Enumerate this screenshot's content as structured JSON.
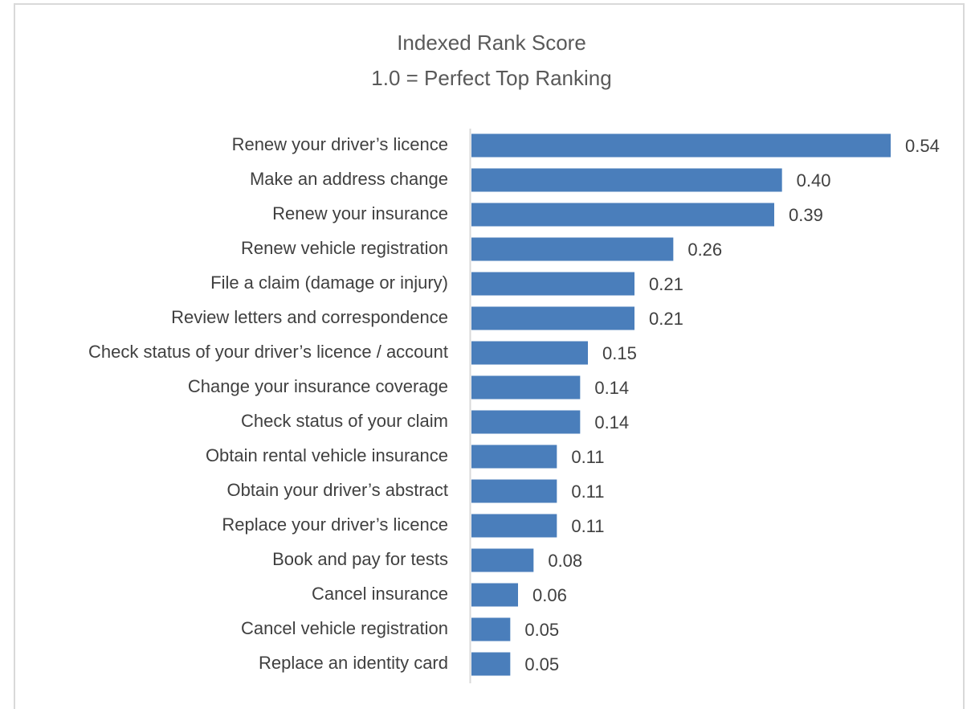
{
  "chart_data": {
    "type": "bar",
    "orientation": "horizontal",
    "title": "Indexed Rank Score",
    "subtitle": "1.0 = Perfect Top Ranking",
    "categories": [
      "Renew your driver’s licence",
      "Make an address change",
      "Renew your insurance",
      "Renew vehicle registration",
      "File a claim (damage or injury)",
      "Review letters and correspondence",
      "Check status of your driver’s licence / account",
      "Change your insurance coverage",
      "Check status of your claim",
      "Obtain rental vehicle insurance",
      "Obtain your driver’s abstract",
      "Replace your driver’s licence",
      "Book and pay for tests",
      "Cancel insurance",
      "Cancel vehicle registration",
      "Replace an identity card"
    ],
    "values": [
      0.54,
      0.4,
      0.39,
      0.26,
      0.21,
      0.21,
      0.15,
      0.14,
      0.14,
      0.11,
      0.11,
      0.11,
      0.08,
      0.06,
      0.05,
      0.05
    ],
    "value_labels": [
      "0.54",
      "0.40",
      "0.39",
      "0.26",
      "0.21",
      "0.21",
      "0.15",
      "0.14",
      "0.14",
      "0.11",
      "0.11",
      "0.11",
      "0.08",
      "0.06",
      "0.05",
      "0.05"
    ],
    "color": "#4a7ebb"
  }
}
